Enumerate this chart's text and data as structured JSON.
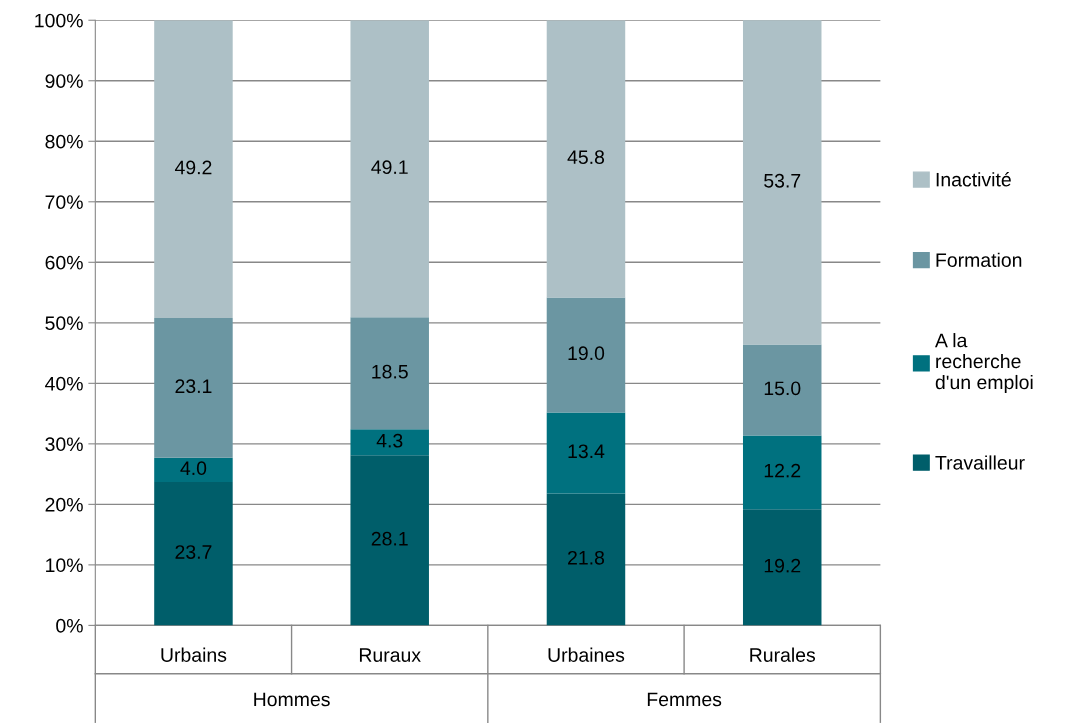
{
  "chart_data": {
    "type": "bar",
    "stacked": true,
    "categories": [
      "Urbains",
      "Ruraux",
      "Urbaines",
      "Rurales"
    ],
    "series": [
      {
        "name": "Travailleur",
        "color": "#005e6a",
        "values": [
          23.7,
          28.1,
          21.8,
          19.2
        ],
        "value_labels": [
          "23.7",
          "28.1",
          "21.8",
          "19.2"
        ]
      },
      {
        "name": "A la\nrecherche\nd'un emploi",
        "color": "#00717f",
        "values": [
          4.0,
          4.3,
          13.4,
          12.2
        ],
        "value_labels": [
          "4.0",
          "4.3",
          "13.4",
          "12.2"
        ]
      },
      {
        "name": "Formation",
        "color": "#6b96a2",
        "values": [
          23.1,
          18.5,
          19.0,
          15.0
        ],
        "value_labels": [
          "23.1",
          "18.5",
          "19.0",
          "15.0"
        ]
      },
      {
        "name": "Inactivité",
        "color": "#adc0c6",
        "values": [
          49.2,
          49.1,
          45.8,
          53.7
        ],
        "value_labels": [
          "49.2",
          "49.1",
          "45.8",
          "53.7"
        ]
      }
    ],
    "annotations": [
      "Hommes",
      "Femmes"
    ],
    "ylim": [
      0,
      100
    ],
    "yticks": [
      {
        "value": 0,
        "label": "0%"
      },
      {
        "value": 10,
        "label": "10%"
      },
      {
        "value": 20,
        "label": "20%"
      },
      {
        "value": 30,
        "label": "30%"
      },
      {
        "value": 40,
        "label": "40%"
      },
      {
        "value": 50,
        "label": "50%"
      },
      {
        "value": 60,
        "label": "60%"
      },
      {
        "value": 70,
        "label": "70%"
      },
      {
        "value": 80,
        "label": "80%"
      },
      {
        "value": 90,
        "label": "90%"
      },
      {
        "value": 100,
        "label": "100%"
      }
    ],
    "grid": "y",
    "legend": "right"
  }
}
